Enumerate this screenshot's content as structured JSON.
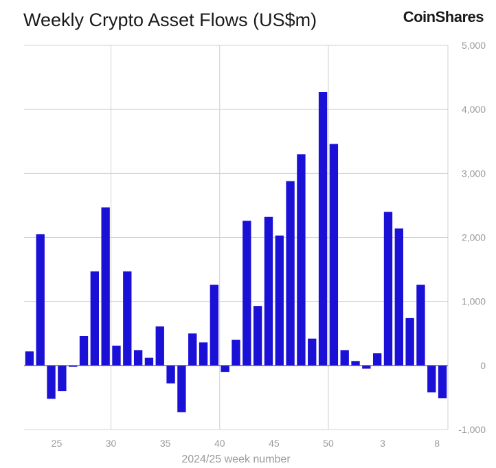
{
  "title": "Weekly Crypto Asset Flows (US$m)",
  "brand": "CoinShares",
  "chart_data": {
    "type": "bar",
    "title": "Weekly Crypto Asset Flows (US$m)",
    "xlabel": "2024/25 week number",
    "ylabel": "",
    "ylim": [
      -1000,
      5000
    ],
    "yticks": [
      -1000,
      0,
      1000,
      2000,
      3000,
      4000,
      5000
    ],
    "ytick_labels": [
      "-1,000",
      "0",
      "1,000",
      "2,000",
      "3,000",
      "4,000",
      "5,000"
    ],
    "xtick_labels": [
      {
        "label": "25",
        "index": 3
      },
      {
        "label": "30",
        "index": 8
      },
      {
        "label": "35",
        "index": 13
      },
      {
        "label": "40",
        "index": 18
      },
      {
        "label": "45",
        "index": 23
      },
      {
        "label": "50",
        "index": 28
      },
      {
        "label": "3",
        "index": 33
      },
      {
        "label": "8",
        "index": 38
      }
    ],
    "grid": true,
    "bar_color": "#1a10d6",
    "categories": [
      "22",
      "23",
      "24",
      "25",
      "26",
      "27",
      "28",
      "29",
      "30",
      "31",
      "32",
      "33",
      "34",
      "35",
      "36",
      "37",
      "38",
      "39",
      "40",
      "41",
      "42",
      "43",
      "44",
      "45",
      "46",
      "47",
      "48",
      "49",
      "50",
      "51",
      "52",
      "1",
      "2",
      "3",
      "4",
      "5",
      "6",
      "7",
      "8"
    ],
    "values": [
      220,
      2050,
      -520,
      -400,
      -20,
      460,
      1470,
      2470,
      310,
      1470,
      240,
      120,
      610,
      -280,
      -730,
      500,
      360,
      1260,
      -100,
      400,
      2260,
      930,
      2320,
      2030,
      2880,
      3300,
      420,
      4270,
      3460,
      240,
      70,
      -50,
      190,
      2400,
      2140,
      740,
      1260,
      -420,
      -510
    ]
  }
}
